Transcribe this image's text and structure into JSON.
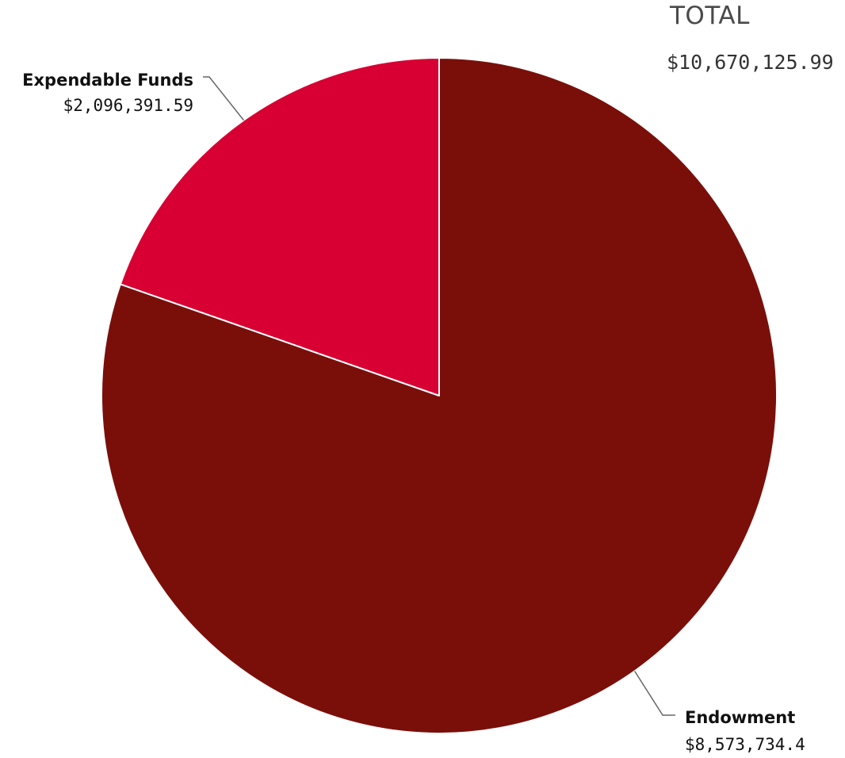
{
  "chart_data": {
    "type": "pie",
    "total": {
      "label": "TOTAL",
      "value_text": "$10,670,125.99"
    },
    "slices": [
      {
        "name": "Endowment",
        "value": 8573734.4,
        "value_text": "$8,573,734.4",
        "color": "#7a0f0a"
      },
      {
        "name": "Expendable Funds",
        "value": 2096391.59,
        "value_text": "$2,096,391.59",
        "color": "#d80032"
      }
    ],
    "start": "12 o'clock",
    "direction": "clockwise",
    "slice_border_color": "#ffffff",
    "leader_line_color": "#666666"
  }
}
